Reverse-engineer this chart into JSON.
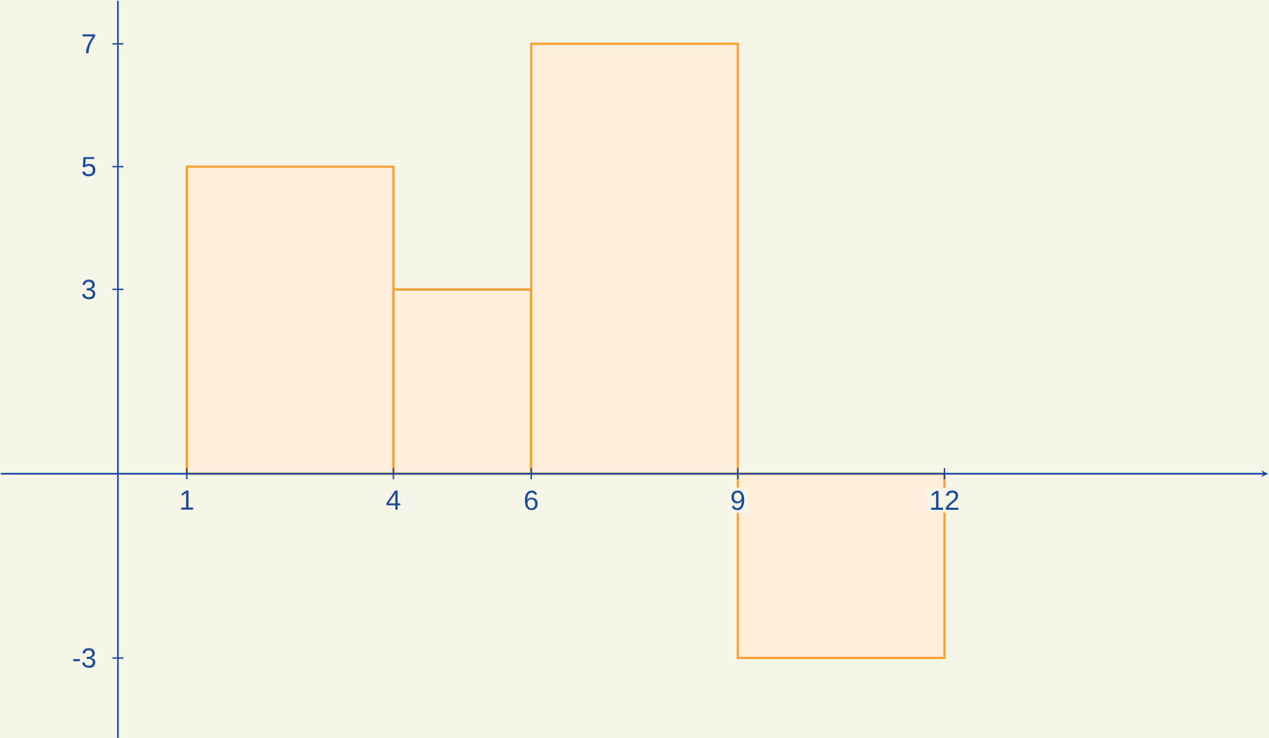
{
  "chart_data": {
    "type": "histogram",
    "bins": [
      1,
      4,
      6,
      9,
      12
    ],
    "values": [
      5,
      3,
      7,
      -3
    ],
    "color": "#f7a030",
    "xlim": [
      -1.7,
      16.7
    ],
    "ylim": [
      -4.3,
      7.7
    ],
    "xticks": [
      1,
      4,
      6,
      9,
      12
    ],
    "yticks": [
      -3,
      3,
      5,
      7
    ],
    "grid": false
  }
}
